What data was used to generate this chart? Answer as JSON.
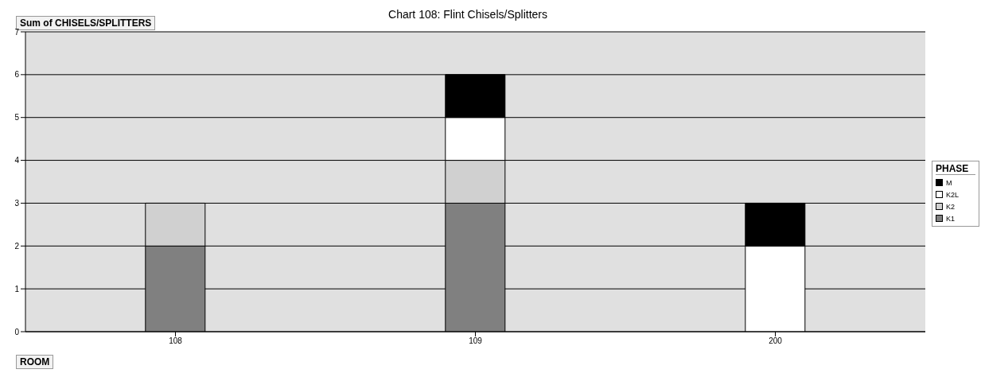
{
  "chart_data": {
    "type": "bar",
    "title": "Chart 108: Flint Chisels/Splitters",
    "ylabel": "Sum of CHISELS/SPLITTERS",
    "xlabel": "ROOM",
    "legend_title": "PHASE",
    "categories": [
      "108",
      "109",
      "200"
    ],
    "stacked": true,
    "series": [
      {
        "name": "K1",
        "color": "#808080",
        "values": [
          2,
          3,
          0
        ]
      },
      {
        "name": "K2",
        "color": "#d0d0d0",
        "values": [
          1,
          1,
          0
        ]
      },
      {
        "name": "K2L",
        "color": "#ffffff",
        "values": [
          0,
          1,
          2
        ]
      },
      {
        "name": "M",
        "color": "#000000",
        "values": [
          0,
          1,
          1
        ]
      }
    ],
    "ylim": [
      0,
      7
    ],
    "yticks": [
      0,
      1,
      2,
      3,
      4,
      5,
      6,
      7
    ],
    "grid": "y",
    "legend": "right"
  }
}
